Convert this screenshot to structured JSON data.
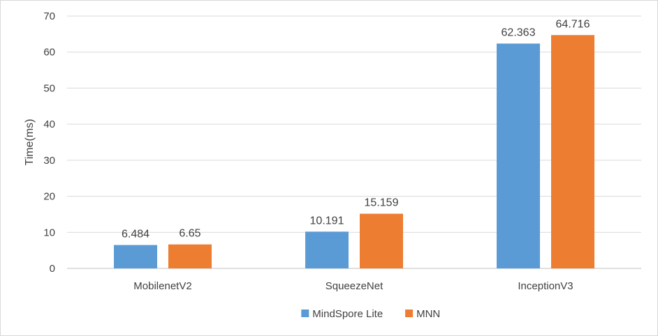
{
  "chart_data": {
    "type": "bar",
    "categories": [
      "MobilenetV2",
      "SqueezeNet",
      "InceptionV3"
    ],
    "series": [
      {
        "name": "MindSpore Lite",
        "color": "#5b9bd5",
        "values": [
          6.484,
          10.191,
          62.363
        ],
        "labels": [
          "6.484",
          "10.191",
          "62.363"
        ]
      },
      {
        "name": "MNN",
        "color": "#ed7d31",
        "values": [
          6.65,
          15.159,
          64.716
        ],
        "labels": [
          "6.65",
          "15.159",
          "64.716"
        ]
      }
    ],
    "ylabel": "Time(ms)",
    "ylim": [
      0,
      70
    ],
    "yticks": [
      0,
      10,
      20,
      30,
      40,
      50,
      60,
      70
    ],
    "grid": true,
    "legend_position": "bottom"
  }
}
